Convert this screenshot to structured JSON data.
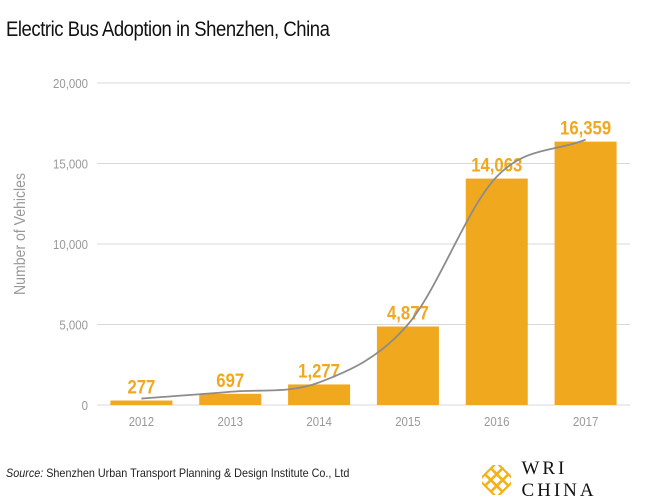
{
  "chart_data": {
    "type": "bar",
    "title": "Electric Bus Adoption in Shenzhen, China",
    "ylabel": "Number of Vehicles",
    "xlabel": "",
    "categories": [
      "2012",
      "2013",
      "2014",
      "2015",
      "2016",
      "2017"
    ],
    "values": [
      277,
      697,
      1277,
      4877,
      14063,
      16359
    ],
    "data_labels": [
      "277",
      "697",
      "1,277",
      "4,877",
      "14,063",
      "16,359"
    ],
    "ylim": [
      0,
      20000
    ],
    "yticks": [
      0,
      5000,
      10000,
      15000,
      20000
    ],
    "ytick_labels": [
      "0",
      "5,000",
      "10,000",
      "15,000",
      "20,000"
    ],
    "grid": true,
    "trend_line": true,
    "colors": {
      "bar": "#F0A81E",
      "label": "#F0A81E",
      "trend": "#8C8C8C",
      "grid": "#D9D9D9",
      "axis_text": "#999999"
    }
  },
  "source": {
    "label": "Source:",
    "text": " Shenzhen Urban Transport Planning & Design Institute Co., Ltd"
  },
  "logo": {
    "text": "WRI CHINA",
    "color": "#F3B21B"
  }
}
